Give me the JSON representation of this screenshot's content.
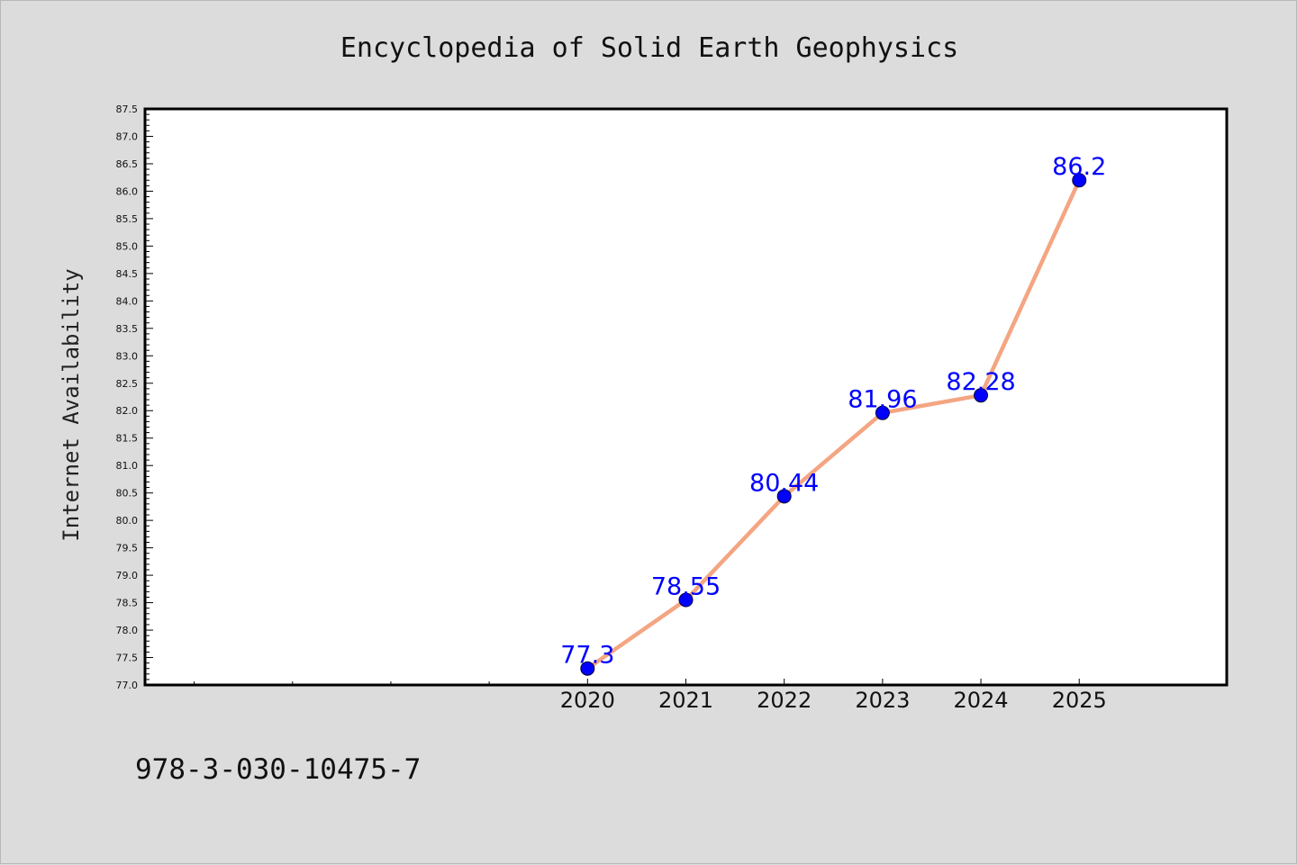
{
  "page": {
    "background_color": "#dcdcdc",
    "isbn": "978-3-030-10475-7"
  },
  "chart_data": {
    "type": "line",
    "title": "Encyclopedia of Solid Earth Geophysics",
    "xlabel": "",
    "ylabel": "Internet Availability",
    "categories": [
      "2020",
      "2021",
      "2022",
      "2023",
      "2024",
      "2025"
    ],
    "x": [
      2020,
      2021,
      2022,
      2023,
      2024,
      2025
    ],
    "xlim": [
      2015.5,
      2026.5
    ],
    "minor_x_ticks": [
      2016,
      2017,
      2018,
      2019
    ],
    "ylim": [
      77.0,
      87.5
    ],
    "ytick_step": 0.5,
    "ytick_decimals": 1,
    "grid": false,
    "series": [
      {
        "values": [
          77.3,
          78.55,
          80.44,
          81.96,
          82.28,
          86.2
        ],
        "data_labels": [
          "77.3",
          "78.55",
          "80.44",
          "81.96",
          "82.28",
          "86.2"
        ],
        "line_color": "#f4a582",
        "marker_color": "#0000ff"
      }
    ]
  }
}
